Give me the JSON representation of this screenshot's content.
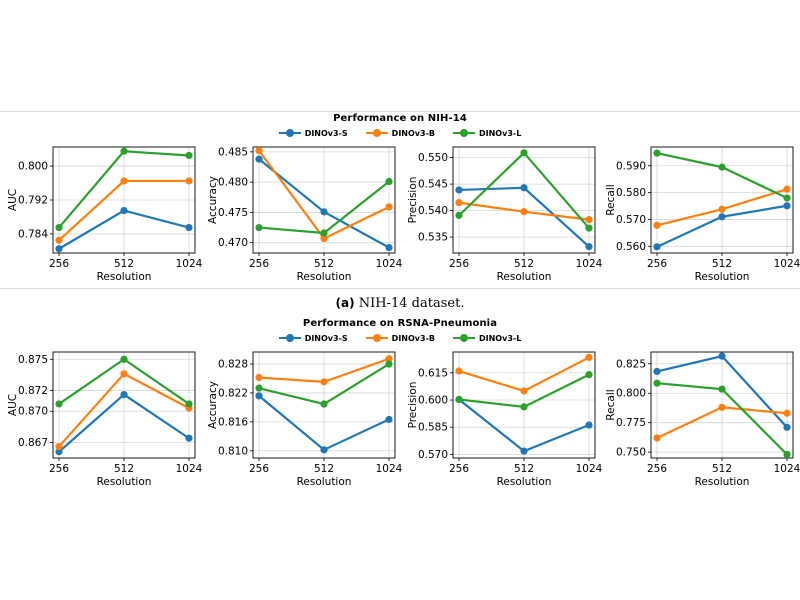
{
  "colors": {
    "DINOv3-S": "#1f77b4",
    "DINOv3-B": "#ff7f0e",
    "DINOv3-L": "#2ca02c",
    "grid": "#d6d6d6"
  },
  "legend": [
    "DINOv3-S",
    "DINOv3-B",
    "DINOv3-L"
  ],
  "rows": [
    {
      "title": "Performance on NIH-14",
      "caption_label": "(a)",
      "caption_text": "NIH-14 dataset."
    },
    {
      "title": "Performance on RSNA-Pneumonia"
    }
  ],
  "chart_data": [
    {
      "type": "line",
      "group": "Performance on NIH-14",
      "xlabel": "Resolution",
      "ylabel": "AUC",
      "categories": [
        "256",
        "512",
        "1024"
      ],
      "yticks": [
        0.784,
        0.792,
        0.8
      ],
      "tick_decimals": 3,
      "ylim": [
        0.7795,
        0.8045
      ],
      "grid": true,
      "series": [
        {
          "name": "DINOv3-S",
          "values": [
            0.7805,
            0.7895,
            0.7855
          ]
        },
        {
          "name": "DINOv3-B",
          "values": [
            0.7825,
            0.7965,
            0.7965
          ]
        },
        {
          "name": "DINOv3-L",
          "values": [
            0.7855,
            0.8035,
            0.8025
          ]
        }
      ]
    },
    {
      "type": "line",
      "group": "Performance on NIH-14",
      "xlabel": "Resolution",
      "ylabel": "Accuracy",
      "categories": [
        "256",
        "512",
        "1024"
      ],
      "yticks": [
        0.47,
        0.475,
        0.48,
        0.485
      ],
      "tick_decimals": 3,
      "ylim": [
        0.4683,
        0.4858
      ],
      "grid": true,
      "series": [
        {
          "name": "DINOv3-S",
          "values": [
            0.4838,
            0.4751,
            0.4692
          ]
        },
        {
          "name": "DINOv3-B",
          "values": [
            0.4852,
            0.4707,
            0.4759
          ]
        },
        {
          "name": "DINOv3-L",
          "values": [
            0.4725,
            0.4716,
            0.4801
          ]
        }
      ]
    },
    {
      "type": "line",
      "group": "Performance on NIH-14",
      "xlabel": "Resolution",
      "ylabel": "Precision",
      "categories": [
        "256",
        "512",
        "1024"
      ],
      "yticks": [
        0.535,
        0.54,
        0.545,
        0.55
      ],
      "tick_decimals": 3,
      "ylim": [
        0.532,
        0.552
      ],
      "grid": true,
      "series": [
        {
          "name": "DINOv3-S",
          "values": [
            0.5439,
            0.5443,
            0.5332
          ]
        },
        {
          "name": "DINOv3-B",
          "values": [
            0.5415,
            0.5398,
            0.5383
          ]
        },
        {
          "name": "DINOv3-L",
          "values": [
            0.5391,
            0.5509,
            0.5367
          ]
        }
      ]
    },
    {
      "type": "line",
      "group": "Performance on NIH-14",
      "xlabel": "Resolution",
      "ylabel": "Recall",
      "categories": [
        "256",
        "512",
        "1024"
      ],
      "yticks": [
        0.56,
        0.57,
        0.58,
        0.59
      ],
      "tick_decimals": 3,
      "ylim": [
        0.5575,
        0.597
      ],
      "grid": true,
      "series": [
        {
          "name": "DINOv3-S",
          "values": [
            0.5598,
            0.571,
            0.5751
          ]
        },
        {
          "name": "DINOv3-B",
          "values": [
            0.5678,
            0.5738,
            0.5813
          ]
        },
        {
          "name": "DINOv3-L",
          "values": [
            0.5947,
            0.5895,
            0.578
          ]
        }
      ]
    },
    {
      "type": "line",
      "group": "Performance on RSNA-Pneumonia",
      "xlabel": "Resolution",
      "ylabel": "AUC",
      "categories": [
        "256",
        "512",
        "1024"
      ],
      "yticks": [
        0.867,
        0.87,
        0.872,
        0.875
      ],
      "tick_decimals": 3,
      "ylim": [
        0.8655,
        0.8757
      ],
      "grid": true,
      "series": [
        {
          "name": "DINOv3-S",
          "values": [
            0.8661,
            0.8716,
            0.8674
          ]
        },
        {
          "name": "DINOv3-B",
          "values": [
            0.8666,
            0.8736,
            0.8703
          ]
        },
        {
          "name": "DINOv3-L",
          "values": [
            0.8707,
            0.875,
            0.8707
          ]
        }
      ]
    },
    {
      "type": "line",
      "group": "Performance on RSNA-Pneumonia",
      "xlabel": "Resolution",
      "ylabel": "Accuracy",
      "categories": [
        "256",
        "512",
        "1024"
      ],
      "yticks": [
        0.81,
        0.816,
        0.822,
        0.828
      ],
      "tick_decimals": 3,
      "ylim": [
        0.8085,
        0.8305
      ],
      "grid": true,
      "series": [
        {
          "name": "DINOv3-S",
          "values": [
            0.8214,
            0.8102,
            0.8165
          ]
        },
        {
          "name": "DINOv3-B",
          "values": [
            0.8252,
            0.8243,
            0.8291
          ]
        },
        {
          "name": "DINOv3-L",
          "values": [
            0.823,
            0.8197,
            0.828
          ]
        }
      ]
    },
    {
      "type": "line",
      "group": "Performance on RSNA-Pneumonia",
      "xlabel": "Resolution",
      "ylabel": "Precision",
      "categories": [
        "256",
        "512",
        "1024"
      ],
      "yticks": [
        0.57,
        0.585,
        0.6,
        0.615
      ],
      "tick_decimals": 3,
      "ylim": [
        0.568,
        0.6265
      ],
      "grid": true,
      "series": [
        {
          "name": "DINOv3-S",
          "values": [
            0.6003,
            0.5718,
            0.5862
          ]
        },
        {
          "name": "DINOv3-B",
          "values": [
            0.616,
            0.605,
            0.6235
          ]
        },
        {
          "name": "DINOv3-L",
          "values": [
            0.6003,
            0.5962,
            0.614
          ]
        }
      ]
    },
    {
      "type": "line",
      "group": "Performance on RSNA-Pneumonia",
      "xlabel": "Resolution",
      "ylabel": "Recall",
      "categories": [
        "256",
        "512",
        "1024"
      ],
      "yticks": [
        0.75,
        0.775,
        0.8,
        0.825
      ],
      "tick_decimals": 3,
      "ylim": [
        0.745,
        0.835
      ],
      "grid": true,
      "series": [
        {
          "name": "DINOv3-S",
          "values": [
            0.8185,
            0.8315,
            0.771
          ]
        },
        {
          "name": "DINOv3-B",
          "values": [
            0.762,
            0.788,
            0.783
          ]
        },
        {
          "name": "DINOv3-L",
          "values": [
            0.8085,
            0.8035,
            0.748
          ]
        }
      ]
    }
  ]
}
